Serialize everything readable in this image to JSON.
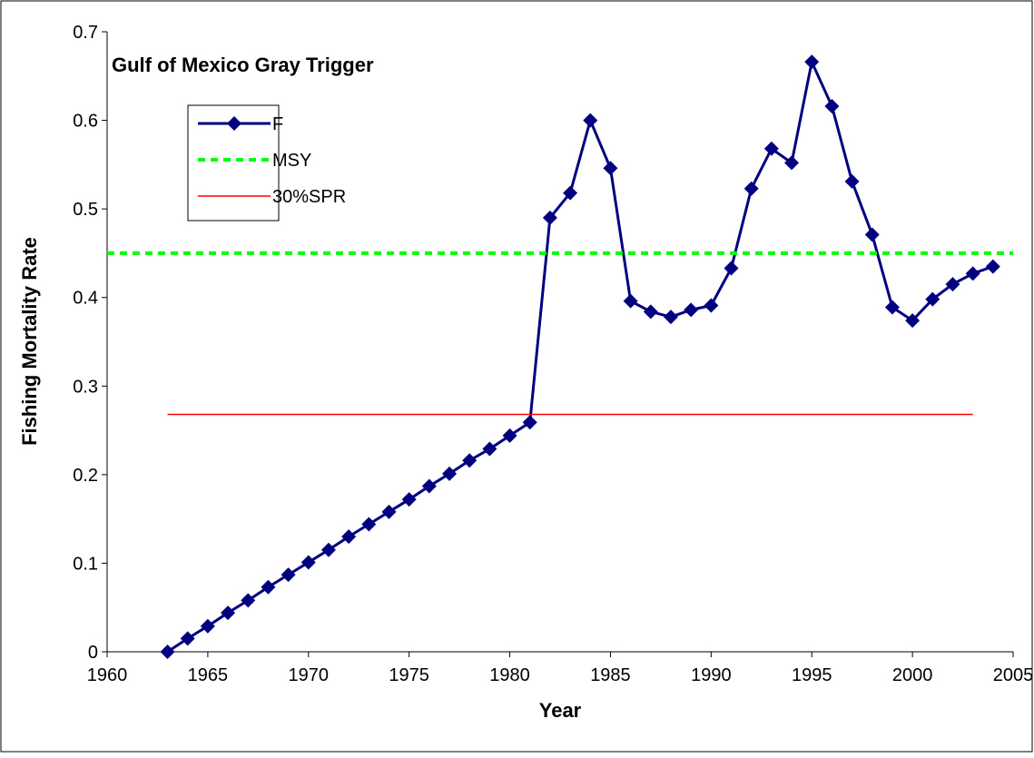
{
  "chart_data": {
    "type": "line",
    "title": "Gulf of Mexico Gray Trigger",
    "x_label": "Year",
    "y_label": "Fishing Mortality Rate",
    "xlim": [
      1960,
      2005
    ],
    "xticks": [
      1960,
      1965,
      1970,
      1975,
      1980,
      1985,
      1990,
      1995,
      2000,
      2005
    ],
    "ylim": [
      0,
      0.7
    ],
    "yticks": [
      0,
      0.1,
      0.2,
      0.3,
      0.4,
      0.5,
      0.6,
      0.7
    ],
    "series": [
      {
        "name": "F",
        "color": "#000080",
        "marker": "diamond",
        "dash": "solid",
        "x": [
          1963,
          1964,
          1965,
          1966,
          1967,
          1968,
          1969,
          1970,
          1971,
          1972,
          1973,
          1974,
          1975,
          1976,
          1977,
          1978,
          1979,
          1980,
          1981,
          1982,
          1983,
          1984,
          1985,
          1986,
          1987,
          1988,
          1989,
          1990,
          1991,
          1992,
          1993,
          1994,
          1995,
          1996,
          1997,
          1998,
          1999,
          2000,
          2001,
          2002,
          2003,
          2004
        ],
        "values": [
          0,
          0.015,
          0.029,
          0.044,
          0.058,
          0.073,
          0.087,
          0.101,
          0.115,
          0.13,
          0.144,
          0.158,
          0.172,
          0.187,
          0.201,
          0.216,
          0.229,
          0.244,
          0.259,
          0.49,
          0.518,
          0.6,
          0.546,
          0.396,
          0.384,
          0.378,
          0.386,
          0.391,
          0.433,
          0.523,
          0.568,
          0.552,
          0.666,
          0.616,
          0.531,
          0.471,
          0.389,
          0.374,
          0.398,
          0.415,
          0.427,
          0.435
        ]
      },
      {
        "name": "MSY",
        "color": "#00ff00",
        "dash": "dotted",
        "x": [
          1960,
          2005
        ],
        "values": [
          0.45,
          0.45
        ]
      },
      {
        "name": "30%SPR",
        "color": "#ff0000",
        "dash": "solid",
        "x": [
          1963,
          2003
        ],
        "values": [
          0.268,
          0.268
        ]
      }
    ]
  }
}
